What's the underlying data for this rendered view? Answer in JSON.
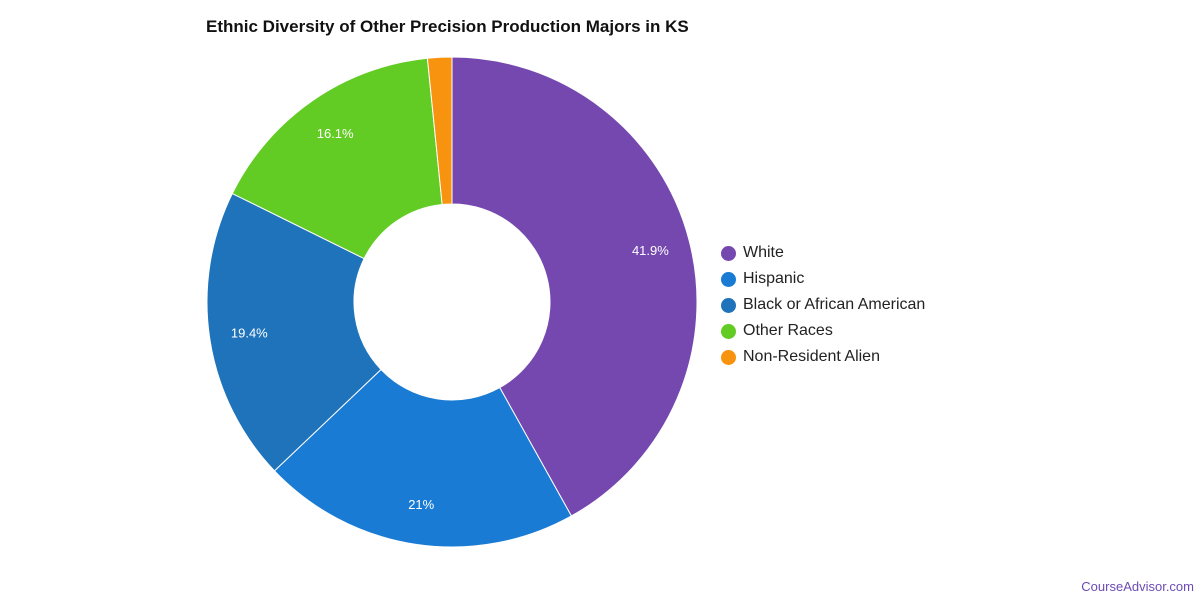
{
  "chart_data": {
    "type": "pie",
    "donut": true,
    "title": "Ethnic Diversity of Other Precision Production Majors in KS",
    "categories": [
      "White",
      "Hispanic",
      "Black or African American",
      "Other Races",
      "Non-Resident Alien"
    ],
    "values": [
      41.9,
      21,
      19.4,
      16.1,
      1.6
    ],
    "data_labels": [
      "41.9%",
      "21%",
      "19.4%",
      "16.1%",
      ""
    ],
    "colors": [
      "#7548b0",
      "#1a7bd4",
      "#1f73bb",
      "#62cc24",
      "#f7930e"
    ],
    "legend_position": "right"
  },
  "watermark": "CourseAdvisor.com"
}
